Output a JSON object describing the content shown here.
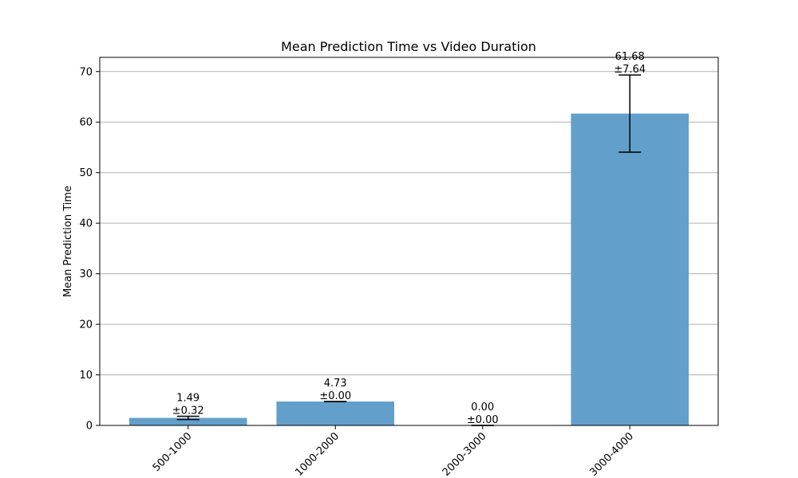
{
  "chart_data": {
    "type": "bar",
    "title": "Mean Prediction Time vs Video Duration",
    "xlabel": "",
    "ylabel": "Mean Prediction Time",
    "categories": [
      "500-1000",
      "1000-2000",
      "2000-3000",
      "3000-4000"
    ],
    "values": [
      1.49,
      4.73,
      0.0,
      61.68
    ],
    "errors": [
      0.32,
      0.0,
      0.0,
      7.64
    ],
    "value_labels": [
      "1.49",
      "4.73",
      "0.00",
      "61.68"
    ],
    "error_labels": [
      "±0.32",
      "±0.00",
      "±0.00",
      "±7.64"
    ],
    "ylim": [
      0,
      72.8
    ],
    "yticks": [
      0,
      10,
      20,
      30,
      40,
      50,
      60,
      70
    ],
    "ytick_labels": [
      "0",
      "10",
      "20",
      "30",
      "40",
      "50",
      "60",
      "70"
    ],
    "grid": "y",
    "bar_color": "#62a0cb",
    "errorbar_color": "#000000",
    "xtick_rotation_deg": 45
  }
}
